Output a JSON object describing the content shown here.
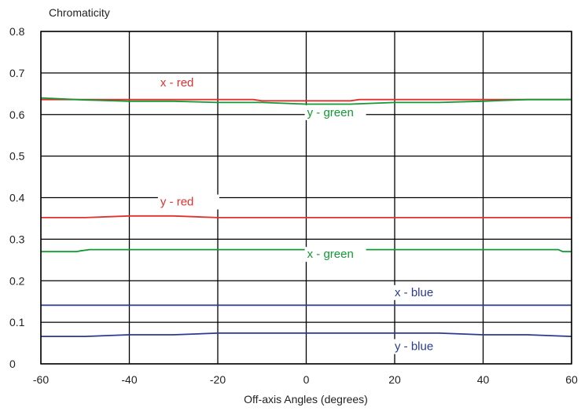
{
  "chart_data": {
    "type": "line",
    "title": "",
    "ylabel": "Chromaticity",
    "xlabel": "Off-axis Angles (degrees)",
    "xlim": [
      -60,
      60
    ],
    "ylim": [
      0,
      0.8
    ],
    "grid": true,
    "x_ticks": [
      -60,
      -40,
      -20,
      0,
      20,
      40,
      60
    ],
    "x_tick_labels": [
      "-60",
      "-40",
      "-20",
      "0",
      "20",
      "40",
      "60"
    ],
    "y_ticks": [
      0,
      0.1,
      0.2,
      0.3,
      0.4,
      0.5,
      0.6,
      0.7,
      0.8
    ],
    "y_tick_labels": [
      "0",
      "0.1",
      "0.2",
      "0.3",
      "0.4",
      "0.5",
      "0.6",
      "0.7",
      "0.8"
    ],
    "series": [
      {
        "name": "x - red",
        "color": "#e03030",
        "x": [
          -60,
          -40,
          -20,
          -12,
          -10,
          0,
          10,
          12,
          20,
          40,
          60
        ],
        "y": [
          0.636,
          0.636,
          0.636,
          0.636,
          0.633,
          0.633,
          0.633,
          0.636,
          0.636,
          0.636,
          0.636
        ]
      },
      {
        "name": "y - green",
        "color": "#119933",
        "x": [
          -60,
          -50,
          -40,
          -30,
          -20,
          -10,
          0,
          10,
          20,
          30,
          40,
          50,
          60
        ],
        "y": [
          0.64,
          0.635,
          0.632,
          0.632,
          0.629,
          0.629,
          0.625,
          0.625,
          0.629,
          0.629,
          0.632,
          0.636,
          0.636
        ]
      },
      {
        "name": "y - red",
        "color": "#e03030",
        "x": [
          -60,
          -50,
          -40,
          -30,
          -20,
          -10,
          0,
          20,
          40,
          60
        ],
        "y": [
          0.352,
          0.352,
          0.356,
          0.356,
          0.352,
          0.352,
          0.352,
          0.352,
          0.352,
          0.352
        ]
      },
      {
        "name": "x - green",
        "color": "#119933",
        "x": [
          -60,
          -52,
          -51,
          -49,
          -40,
          -20,
          0,
          20,
          40,
          57,
          58,
          60
        ],
        "y": [
          0.27,
          0.27,
          0.272,
          0.275,
          0.275,
          0.275,
          0.275,
          0.275,
          0.275,
          0.275,
          0.27,
          0.27
        ]
      },
      {
        "name": "x - blue",
        "color": "#2a3a8f",
        "x": [
          -60,
          -40,
          -20,
          0,
          20,
          40,
          60
        ],
        "y": [
          0.141,
          0.141,
          0.141,
          0.141,
          0.141,
          0.141,
          0.141
        ]
      },
      {
        "name": "y - blue",
        "color": "#2a3a8f",
        "x": [
          -60,
          -50,
          -40,
          -30,
          -20,
          0,
          20,
          30,
          40,
          50,
          60
        ],
        "y": [
          0.066,
          0.066,
          0.07,
          0.07,
          0.074,
          0.074,
          0.074,
          0.074,
          0.07,
          0.07,
          0.066
        ]
      }
    ]
  }
}
